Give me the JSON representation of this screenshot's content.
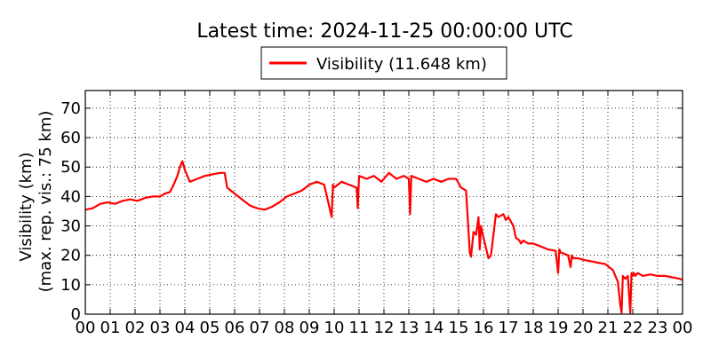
{
  "chart_data": {
    "type": "line",
    "title": "Latest time: 2024-11-25 00:00:00 UTC",
    "ylabel_line1": "Visibility (km)",
    "ylabel_line2": "(max. rep. vis.: 75 km)",
    "xlabel": "",
    "ylim": [
      0,
      76
    ],
    "xlim": [
      0,
      24
    ],
    "yticks": [
      0,
      10,
      20,
      30,
      40,
      50,
      60,
      70
    ],
    "ytick_labels": [
      "0",
      "10",
      "20",
      "30",
      "40",
      "50",
      "60",
      "70"
    ],
    "xticks": [
      0,
      1,
      2,
      3,
      4,
      5,
      6,
      7,
      8,
      9,
      10,
      11,
      12,
      13,
      14,
      15,
      16,
      17,
      18,
      19,
      20,
      21,
      22,
      23,
      24
    ],
    "xtick_labels": [
      "00",
      "01",
      "02",
      "03",
      "04",
      "05",
      "06",
      "07",
      "08",
      "09",
      "10",
      "11",
      "12",
      "13",
      "14",
      "15",
      "16",
      "17",
      "18",
      "19",
      "20",
      "21",
      "22",
      "23",
      "00"
    ],
    "grid": true,
    "legend_position": "top-center",
    "series": [
      {
        "name": "Visibility (11.648 km)",
        "color": "#ff0000",
        "x": [
          0,
          0.3,
          0.6,
          0.9,
          1.2,
          1.5,
          1.8,
          2.1,
          2.4,
          2.7,
          3.0,
          3.2,
          3.4,
          3.55,
          3.7,
          3.8,
          3.9,
          4.0,
          4.2,
          4.5,
          4.8,
          5.1,
          5.4,
          5.6,
          5.7,
          6.0,
          6.3,
          6.6,
          6.9,
          7.2,
          7.5,
          7.8,
          8.1,
          8.4,
          8.7,
          9.0,
          9.3,
          9.6,
          9.9,
          9.95,
          10.0,
          10.3,
          10.6,
          10.9,
          10.95,
          11.0,
          11.3,
          11.6,
          11.9,
          12.2,
          12.5,
          12.8,
          13.0,
          13.05,
          13.1,
          13.4,
          13.7,
          14.0,
          14.3,
          14.6,
          14.9,
          15.1,
          15.3,
          15.45,
          15.5,
          15.6,
          15.7,
          15.8,
          15.85,
          15.9,
          16.0,
          16.2,
          16.3,
          16.5,
          16.6,
          16.8,
          16.9,
          17.0,
          17.2,
          17.3,
          17.45,
          17.5,
          17.6,
          17.8,
          18.0,
          18.3,
          18.6,
          18.9,
          19.0,
          19.05,
          19.1,
          19.4,
          19.5,
          19.55,
          19.6,
          19.8,
          20.0,
          20.3,
          20.6,
          20.9,
          21.2,
          21.35,
          21.4,
          21.5,
          21.55,
          21.6,
          21.7,
          21.8,
          21.9,
          21.95,
          22.0,
          22.05,
          22.1,
          22.2,
          22.4,
          22.7,
          23.0,
          23.3,
          23.6,
          23.9,
          24.0
        ],
        "y": [
          35.5,
          36,
          37.5,
          38,
          37.5,
          38.5,
          39,
          38.5,
          39.5,
          40,
          40,
          41,
          41.5,
          44,
          47,
          50,
          52,
          49,
          45,
          46,
          47,
          47.5,
          48,
          48,
          43,
          41,
          39,
          37,
          36,
          35.5,
          36.5,
          38,
          40,
          41,
          42,
          44,
          45,
          44,
          33,
          44,
          43,
          45,
          44,
          43,
          36,
          47,
          46,
          47,
          45,
          48,
          46,
          47,
          46,
          34,
          47,
          46,
          45,
          46,
          45,
          46,
          46,
          43,
          42,
          21,
          19.5,
          28,
          27,
          33,
          22,
          30,
          26,
          19,
          20,
          34,
          33,
          34,
          32,
          33,
          30,
          26,
          25,
          24,
          25,
          24,
          24,
          23,
          22,
          21.5,
          14,
          22,
          21,
          20,
          16,
          20,
          19,
          19,
          18.5,
          18,
          17.5,
          17,
          15,
          12,
          11,
          3,
          0.5,
          13,
          12,
          13,
          0.5,
          14,
          13,
          14,
          13,
          14,
          13,
          13.5,
          13,
          13,
          12.5,
          12,
          11.6
        ]
      }
    ]
  }
}
